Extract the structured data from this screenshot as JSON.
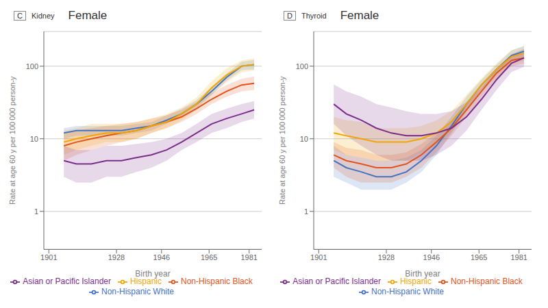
{
  "chart_data": [
    {
      "type": "line",
      "title": "Female",
      "subtitle": "Kidney",
      "annotations": [
        "C"
      ],
      "xlabel": "Birth year",
      "ylabel": "Rate at age 60 y per 100 000 person-y",
      "x": [
        1907,
        1912,
        1918,
        1924,
        1930,
        1936,
        1942,
        1948,
        1954,
        1960,
        1966,
        1972,
        1978,
        1983
      ],
      "series": [
        {
          "name": "Non-Hispanic White",
          "color": "#4472C4",
          "values": [
            12,
            13,
            13,
            13,
            13,
            14,
            15,
            18,
            22,
            30,
            45,
            70,
            100,
            105
          ],
          "ci_low": [
            10,
            11,
            11,
            11,
            11,
            12,
            13,
            16,
            20,
            27,
            40,
            63,
            88,
            90
          ],
          "ci_high": [
            14,
            15,
            15,
            15,
            15,
            16,
            17,
            21,
            26,
            34,
            52,
            79,
            115,
            122
          ]
        },
        {
          "name": "Non-Hispanic Black",
          "color": "#E2531A",
          "values": [
            8,
            9,
            10,
            11,
            12,
            13,
            15,
            17,
            20,
            26,
            35,
            45,
            55,
            58
          ],
          "ci_low": [
            5,
            6,
            7,
            8,
            9,
            10,
            12,
            14,
            17,
            22,
            30,
            38,
            45,
            47
          ],
          "ci_high": [
            12,
            13,
            14,
            15,
            16,
            17,
            19,
            21,
            25,
            32,
            42,
            55,
            67,
            72
          ]
        },
        {
          "name": "Hispanic",
          "color": "#F0A500",
          "values": [
            9,
            10,
            11,
            12,
            12,
            13,
            15,
            17,
            22,
            30,
            50,
            75,
            100,
            105
          ],
          "ci_low": [
            6,
            7,
            8,
            9,
            9,
            10,
            12,
            14,
            18,
            25,
            40,
            60,
            82,
            87
          ],
          "ci_high": [
            13,
            14,
            16,
            16,
            16,
            17,
            19,
            22,
            27,
            37,
            62,
            93,
            120,
            128
          ]
        },
        {
          "name": "Asian or Pacific Islander",
          "color": "#7B2D8B",
          "values": [
            5,
            4.5,
            4.5,
            5,
            5,
            5.5,
            6,
            7,
            9,
            12,
            16,
            19,
            22,
            25
          ],
          "ci_low": [
            3,
            2.5,
            2.5,
            3,
            3,
            3.5,
            4,
            5,
            7,
            9,
            12,
            14,
            17,
            19
          ],
          "ci_high": [
            8,
            7,
            7,
            8,
            8,
            8.5,
            9,
            10,
            12,
            16,
            22,
            26,
            30,
            33
          ]
        }
      ],
      "xlim": [
        1899,
        1986
      ],
      "xticks": [
        1901,
        1928,
        1946,
        1965,
        1981
      ],
      "ylim": [
        0.3,
        300
      ],
      "yticks": [
        1,
        10,
        100
      ],
      "log": "y",
      "grid": true,
      "legend": "bottom"
    },
    {
      "type": "line",
      "title": "Female",
      "subtitle": "Thyroid",
      "annotations": [
        "D"
      ],
      "xlabel": "Birth year",
      "ylabel": "Rate at age 60 y per 100 000 person-y",
      "x": [
        1907,
        1912,
        1918,
        1924,
        1930,
        1936,
        1942,
        1948,
        1954,
        1960,
        1966,
        1972,
        1978,
        1983
      ],
      "series": [
        {
          "name": "Non-Hispanic White",
          "color": "#4472C4",
          "values": [
            5,
            4,
            3.5,
            3,
            3,
            3.5,
            5,
            8,
            15,
            30,
            55,
            90,
            140,
            160
          ],
          "ci_low": [
            3,
            2.5,
            2,
            2,
            2,
            2.5,
            3.5,
            6,
            12,
            25,
            48,
            78,
            120,
            135
          ],
          "ci_high": [
            8,
            6,
            5.5,
            5,
            5,
            5.5,
            7,
            11,
            20,
            38,
            65,
            105,
            165,
            190
          ]
        },
        {
          "name": "Non-Hispanic Black",
          "color": "#E2531A",
          "values": [
            6,
            5,
            4.5,
            4,
            4,
            4.5,
            6,
            9,
            14,
            25,
            45,
            80,
            120,
            130
          ],
          "ci_low": [
            4,
            3,
            2.5,
            2.5,
            2.5,
            3,
            4,
            6.5,
            11,
            20,
            38,
            68,
            100,
            108
          ],
          "ci_high": [
            9,
            7.5,
            7,
            6,
            6,
            6.5,
            8.5,
            12,
            18,
            31,
            55,
            95,
            145,
            158
          ]
        },
        {
          "name": "Hispanic",
          "color": "#F0A500",
          "values": [
            12,
            11,
            10,
            9,
            9,
            9,
            10,
            12,
            17,
            30,
            55,
            90,
            135,
            150
          ],
          "ci_low": [
            7,
            6,
            5.5,
            5,
            5,
            5,
            6.5,
            8,
            12,
            23,
            44,
            72,
            108,
            120
          ],
          "ci_high": [
            20,
            18,
            17,
            14,
            14,
            14,
            15,
            18,
            24,
            40,
            68,
            110,
            165,
            185
          ]
        },
        {
          "name": "Asian or Pacific Islander",
          "color": "#7B2D8B",
          "values": [
            30,
            22,
            18,
            14,
            12,
            11,
            11,
            12,
            14,
            20,
            35,
            65,
            110,
            130
          ],
          "ci_low": [
            16,
            11,
            8,
            6,
            5,
            5,
            5,
            6,
            8,
            13,
            25,
            47,
            83,
            98
          ],
          "ci_high": [
            56,
            45,
            38,
            30,
            27,
            24,
            22,
            22,
            24,
            32,
            50,
            88,
            145,
            172
          ]
        }
      ],
      "xlim": [
        1899,
        1986
      ],
      "xticks": [
        1901,
        1928,
        1946,
        1965,
        1981
      ],
      "ylim": [
        0.3,
        300
      ],
      "yticks": [
        1,
        10,
        100
      ],
      "log": "y",
      "grid": true,
      "legend": "bottom"
    }
  ]
}
